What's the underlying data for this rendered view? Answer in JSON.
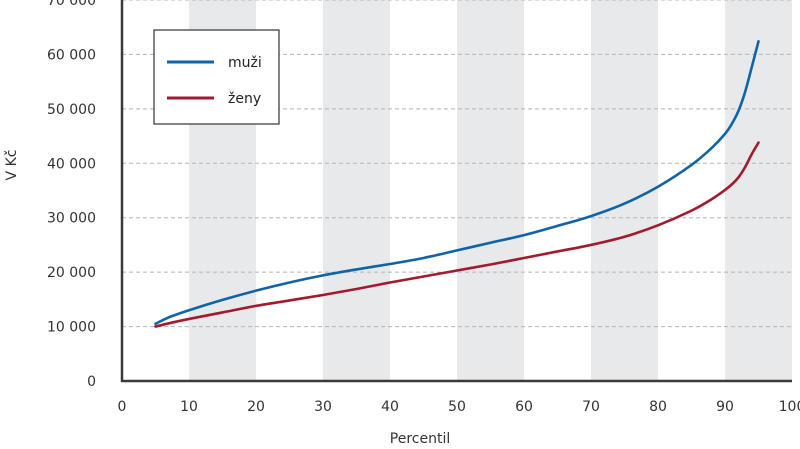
{
  "chart_data": {
    "type": "line",
    "title": "",
    "xlabel": "Percentil",
    "ylabel": "V Kč",
    "xlim": [
      0,
      100
    ],
    "ylim": [
      0,
      70000
    ],
    "x_ticks": [
      "0",
      "10",
      "20",
      "30",
      "40",
      "50",
      "60",
      "70",
      "80",
      "90",
      "100"
    ],
    "y_ticks": [
      "0",
      "10 000",
      "20 000",
      "30 000",
      "40 000",
      "50 000",
      "60 000",
      "70 000"
    ],
    "grid": "horizontal dashed",
    "shaded_bands": [
      [
        10,
        20
      ],
      [
        30,
        40
      ],
      [
        50,
        60
      ],
      [
        70,
        80
      ],
      [
        90,
        100
      ]
    ],
    "legend_position": "top-left",
    "series": [
      {
        "name": "muži",
        "color": "#0f63a8",
        "x": [
          5,
          7,
          10,
          15,
          20,
          25,
          30,
          35,
          40,
          45,
          50,
          55,
          60,
          65,
          70,
          75,
          80,
          85,
          88,
          90,
          91,
          92,
          93,
          94,
          95
        ],
        "y": [
          10500,
          11700,
          13000,
          14900,
          16600,
          18100,
          19400,
          20500,
          21500,
          22600,
          24000,
          25400,
          26800,
          28500,
          30300,
          32600,
          35700,
          39700,
          42800,
          45400,
          47200,
          49600,
          53100,
          57700,
          62400
        ]
      },
      {
        "name": "ženy",
        "color": "#a31a2e",
        "x": [
          5,
          7,
          10,
          15,
          20,
          25,
          30,
          35,
          40,
          45,
          50,
          55,
          60,
          65,
          70,
          75,
          80,
          85,
          88,
          90,
          91,
          92,
          93,
          94,
          95
        ],
        "y": [
          10000,
          10600,
          11400,
          12600,
          13800,
          14800,
          15800,
          16900,
          18100,
          19200,
          20300,
          21400,
          22600,
          23800,
          25000,
          26500,
          28600,
          31300,
          33400,
          35100,
          36100,
          37400,
          39300,
          41700,
          43800
        ]
      }
    ]
  }
}
